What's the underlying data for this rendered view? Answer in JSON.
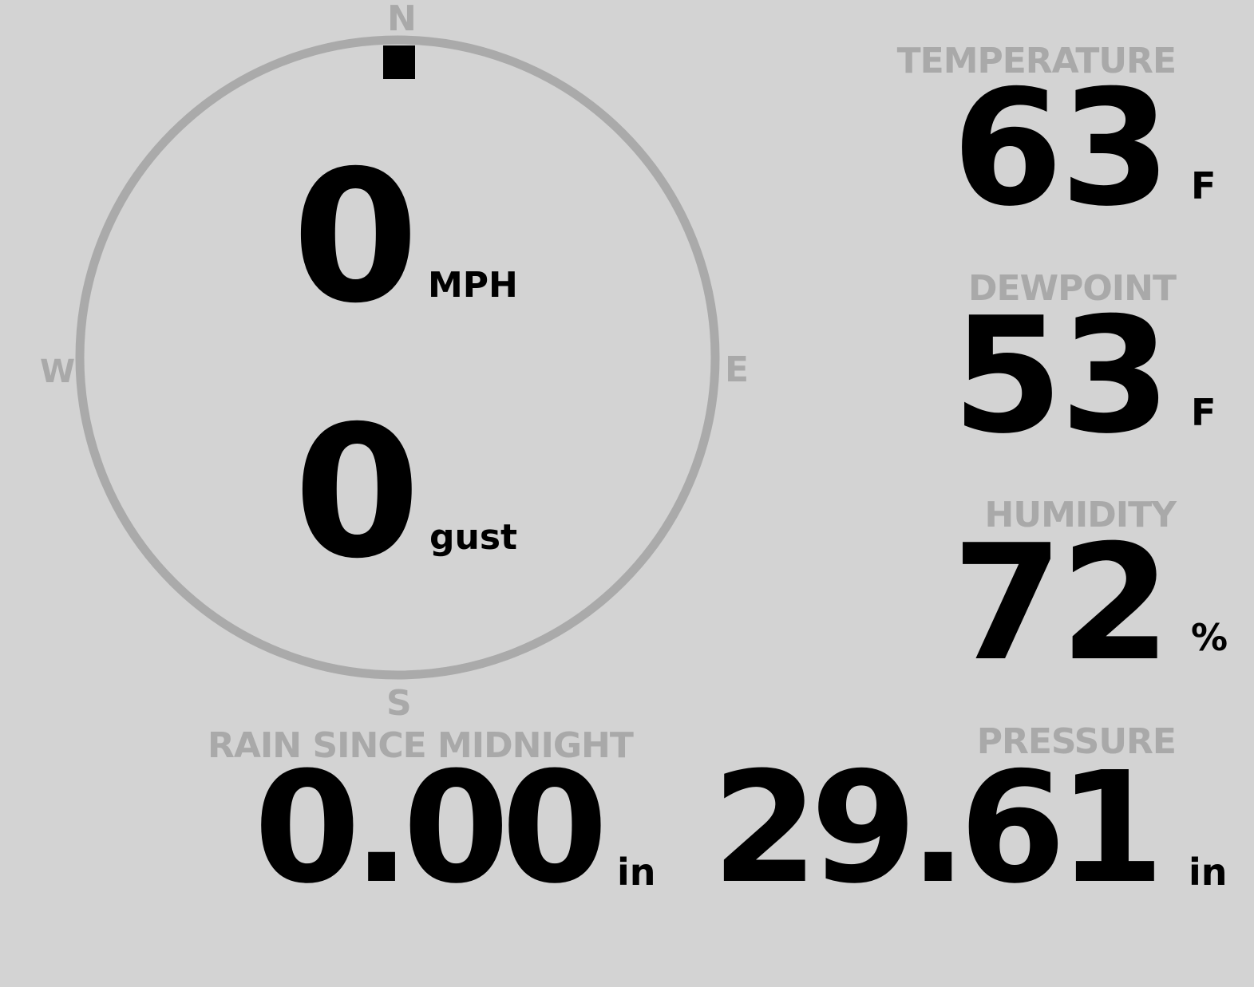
{
  "wind": {
    "speed": "0",
    "speed_unit": "MPH",
    "gust": "0",
    "gust_unit": "gust",
    "direction_degrees": 0,
    "compass": {
      "n": "N",
      "e": "E",
      "s": "S",
      "w": "W"
    }
  },
  "temperature": {
    "label": "TEMPERATURE",
    "value": "63",
    "unit": "F"
  },
  "dewpoint": {
    "label": "DEWPOINT",
    "value": "53",
    "unit": "F"
  },
  "humidity": {
    "label": "HUMIDITY",
    "value": "72",
    "unit": "%"
  },
  "rain": {
    "label": "RAIN SINCE MIDNIGHT",
    "value": "0.00",
    "unit": "in"
  },
  "pressure": {
    "label": "PRESSURE",
    "value": "29.61",
    "unit": "in"
  },
  "colors": {
    "background": "#d3d3d3",
    "label": "#a9a9a9",
    "value": "#000000",
    "dial": "#aaaaaa"
  }
}
